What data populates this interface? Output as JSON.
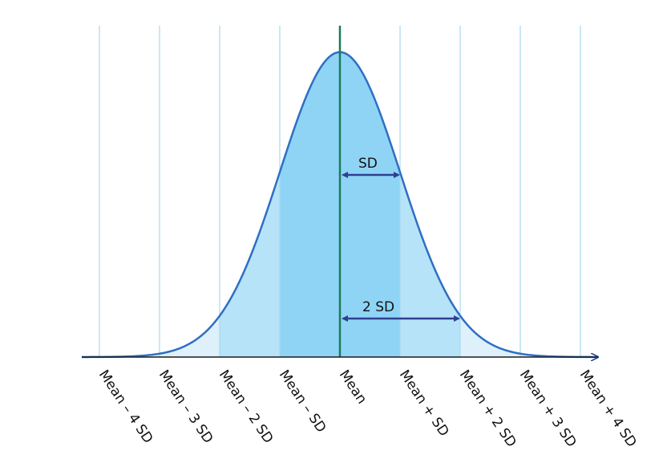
{
  "diagram": {
    "title": "",
    "axis_labels": [
      "Mean – 4 SD",
      "Mean – 3 SD",
      "Mean – 2 SD",
      "Mean – SD",
      "Mean",
      "Mean + SD",
      "Mean + 2 SD",
      "Mean + 3 SD",
      "Mean + 4 SD"
    ],
    "annotations": {
      "sd": "SD",
      "two_sd": "2 SD"
    },
    "colors": {
      "curve": "#2e6fc4",
      "mean_line": "#1b7a5c",
      "band_1sd": "#8fd4f5",
      "band_2sd": "#b7e3f8",
      "band_outer": "#def1fb",
      "gridline": "#a6d8f0",
      "arrow": "#2f3f92",
      "axis": "#1a1a1a"
    }
  }
}
